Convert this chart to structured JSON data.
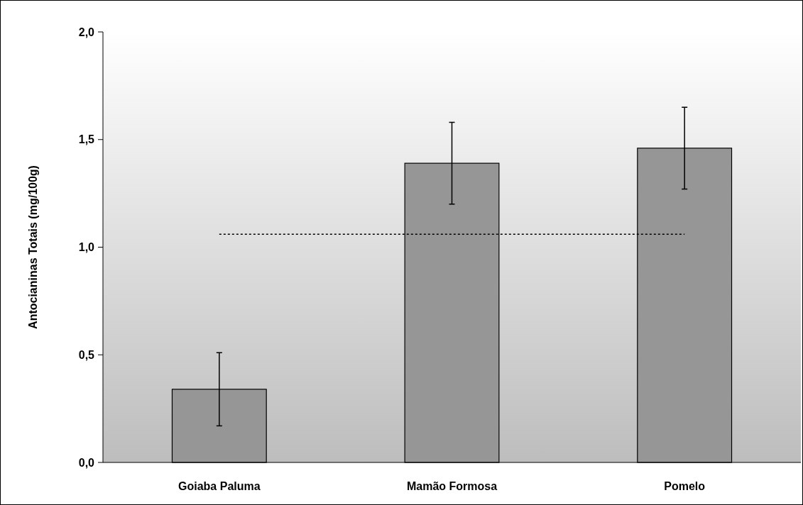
{
  "chart_data": {
    "type": "bar",
    "ylabel": "Antocianinas Totais (mg/100g)",
    "categories": [
      "Goiaba Paluma",
      "Mamão Formosa",
      "Pomelo"
    ],
    "values": [
      0.34,
      1.39,
      1.46
    ],
    "errors": [
      0.17,
      0.19,
      0.19
    ],
    "color": "#969696",
    "ylim": [
      0,
      2
    ],
    "yticks": [
      {
        "value": 0,
        "label": "0,0"
      },
      {
        "value": 0.5,
        "label": "0,5"
      },
      {
        "value": 1,
        "label": "1,0"
      },
      {
        "value": 1.5,
        "label": "1,5"
      },
      {
        "value": 2,
        "label": "2,0"
      }
    ],
    "ref_lines": [
      {
        "axis": "y",
        "value": 1.06,
        "line_style": "dotted",
        "color": "#000000"
      }
    ],
    "grid": false
  }
}
